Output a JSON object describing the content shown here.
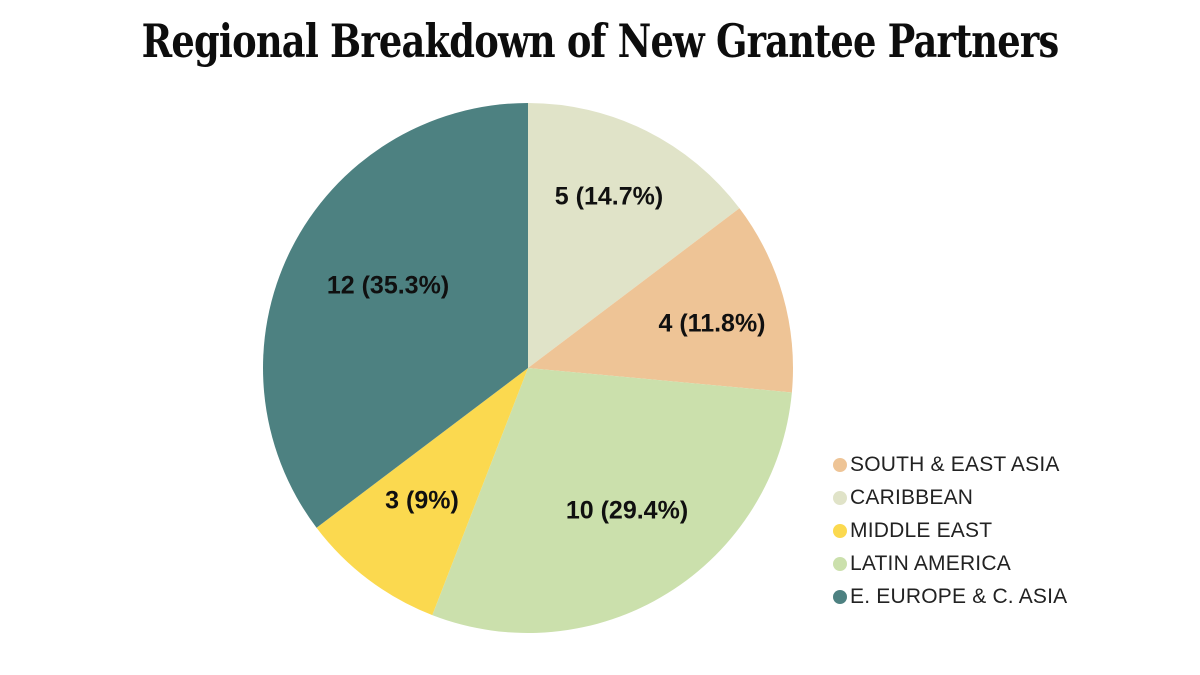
{
  "chart_data": {
    "type": "pie",
    "title": "Regional Breakdown of New Grantee Partners",
    "total": 34,
    "direction": "clockwise",
    "start_angle_deg": 0,
    "legend_position": "right",
    "slices": [
      {
        "name": "CARIBBEAN",
        "value": 5,
        "pct": 14.7,
        "label": "5 (14.7%)",
        "color": "#e0e3c8"
      },
      {
        "name": "SOUTH & EAST ASIA",
        "value": 4,
        "pct": 11.8,
        "label": "4 (11.8%)",
        "color": "#eec496"
      },
      {
        "name": "LATIN AMERICA",
        "value": 10,
        "pct": 29.4,
        "label": "10 (29.4%)",
        "color": "#cbe0ac"
      },
      {
        "name": "MIDDLE EAST",
        "value": 3,
        "pct": 9,
        "label": "3 (9%)",
        "color": "#fbd94f"
      },
      {
        "name": "E. EUROPE & C. ASIA",
        "value": 12,
        "pct": 35.3,
        "label": "12 (35.3%)",
        "color": "#4d8181"
      }
    ]
  },
  "legend": {
    "items": [
      {
        "label": "SOUTH & EAST ASIA",
        "color": "#eec496"
      },
      {
        "label": "CARIBBEAN",
        "color": "#e0e3c8"
      },
      {
        "label": "MIDDLE EAST",
        "color": "#fbd94f"
      },
      {
        "label": "LATIN AMERICA",
        "color": "#cbe0ac"
      },
      {
        "label": "E. EUROPE & C. ASIA",
        "color": "#4d8181"
      }
    ]
  }
}
